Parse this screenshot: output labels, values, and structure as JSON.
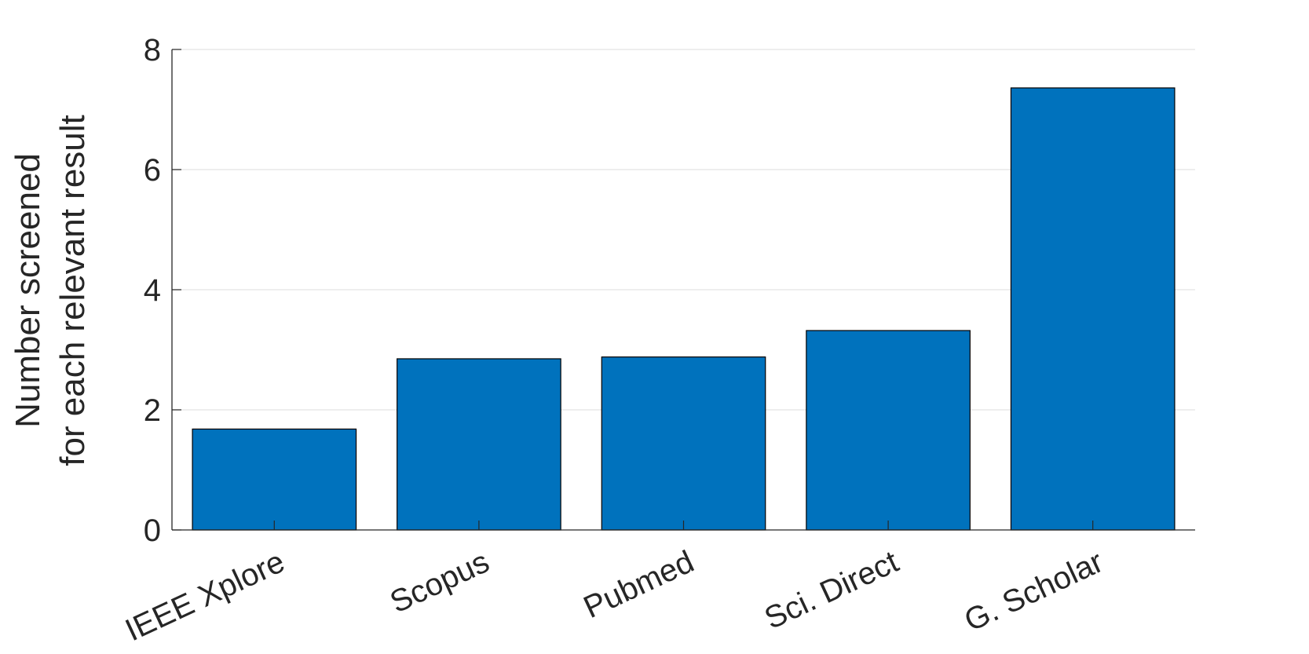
{
  "chart_data": {
    "type": "bar",
    "title": "",
    "xlabel": "",
    "ylabel_lines": [
      "Number screened",
      "for each relevant result"
    ],
    "categories": [
      "IEEE Xplore",
      "Scopus",
      "Pubmed",
      "Sci. Direct",
      "G. Scholar"
    ],
    "values": [
      1.68,
      2.85,
      2.88,
      3.32,
      7.36
    ],
    "ylim": [
      0,
      8
    ],
    "yticks": [
      0,
      2,
      4,
      6,
      8
    ],
    "grid": true,
    "legend": "none",
    "bar_color": "#0072BD",
    "bar_edge_color": "#000000",
    "grid_color": "#e3e3e3",
    "axis_color": "#262626"
  }
}
